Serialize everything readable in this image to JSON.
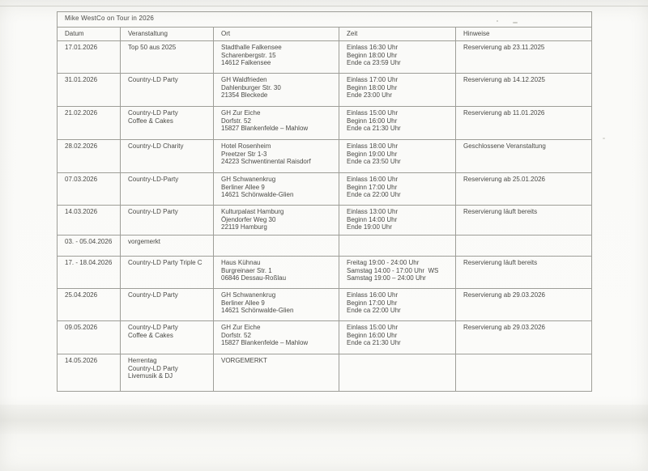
{
  "page": {
    "title": "Mike WestCo on Tour in 2026"
  },
  "colors": {
    "ink": "#4a4a46",
    "table_border": "#9e9e98",
    "paper": "#fbfbf9"
  },
  "table": {
    "columns": [
      "Datum",
      "Veranstaltung",
      "Ort",
      "Zeit",
      "Hinweise"
    ],
    "rows": [
      {
        "datum": "17.01.2026",
        "veranstaltung": [
          "Top 50 aus 2025"
        ],
        "ort": [
          "Stadthalle Falkensee",
          "Scharenbergstr. 15",
          "14612 Falkensee"
        ],
        "zeit": [
          "Einlass 16:30 Uhr",
          "Beginn 18:00 Uhr",
          "Ende ca 23:59 Uhr"
        ],
        "hinweise": [
          "Reservierung ab 23.11.2025"
        ]
      },
      {
        "datum": "31.01.2026",
        "veranstaltung": [
          "Country-LD Party"
        ],
        "ort": [
          "GH Waldfrieden",
          "Dahlenburger Str. 30",
          "21354 Bleckede"
        ],
        "zeit": [
          "Einlass 17:00 Uhr",
          "Beginn 18:00 Uhr",
          "Ende 23:00 Uhr"
        ],
        "hinweise": [
          "Reservierung ab 14.12.2025"
        ]
      },
      {
        "datum": "21.02.2026",
        "veranstaltung": [
          "Country-LD Party",
          "Coffee & Cakes"
        ],
        "ort": [
          "GH Zur Eiche",
          "Dorfstr. 52",
          "15827 Blankenfelde – Mahlow"
        ],
        "zeit": [
          "Einlass 15:00 Uhr",
          "Beginn 16:00 Uhr",
          "Ende ca 21:30 Uhr"
        ],
        "hinweise": [
          "Reservierung ab 11.01.2026"
        ]
      },
      {
        "datum": "28.02.2026",
        "veranstaltung": [
          "Country-LD Charity"
        ],
        "ort": [
          "Hotel Rosenheim",
          "Preetzer Str 1-3",
          "24223 Schwentinental Raisdorf"
        ],
        "zeit": [
          "Einlass 18:00 Uhr",
          "Beginn 19:00 Uhr",
          "Ende ca 23:50 Uhr"
        ],
        "hinweise": [
          "Geschlossene Veranstaltung"
        ]
      },
      {
        "datum": "07.03.2026",
        "veranstaltung": [
          "Country-LD-Party"
        ],
        "ort": [
          "GH Schwanenkrug",
          "Berliner Allee 9",
          "14621 Schönwalde-Glien"
        ],
        "zeit": [
          "Einlass 16:00 Uhr",
          "Beginn 17:00 Uhr",
          "Ende ca 22:00 Uhr"
        ],
        "hinweise": [
          "Reservierung ab 25.01.2026"
        ]
      },
      {
        "datum": "14.03.2026",
        "veranstaltung": [
          "Country-LD Party"
        ],
        "ort": [
          "Kulturpalast Hamburg",
          "Öjendorfer Weg 30",
          "22119 Hamburg"
        ],
        "zeit": [
          "Einlass 13:00 Uhr",
          "Beginn 14:00 Uhr",
          "Ende 19:00 Uhr"
        ],
        "hinweise": [
          "Reservierung läuft bereits"
        ]
      },
      {
        "datum": "03. - 05.04.2026",
        "veranstaltung": [
          "vorgemerkt"
        ],
        "ort": [],
        "zeit": [],
        "hinweise": []
      },
      {
        "datum": "17. - 18.04.2026",
        "veranstaltung": [
          "Country-LD Party Triple C"
        ],
        "ort": [
          "Haus Kühnau",
          "Burgreinaer Str. 1",
          "06846 Dessau-Roßlau"
        ],
        "zeit": [
          "Freitag 19:00 - 24:00 Uhr",
          "Samstag 14:00 - 17:00 Uhr  WS",
          "Samstag 19:00 – 24:00 Uhr"
        ],
        "hinweise": [
          "Reservierung läuft bereits"
        ]
      },
      {
        "datum": "25.04.2026",
        "veranstaltung": [
          "Country-LD Party"
        ],
        "ort": [
          "GH Schwanenkrug",
          "Berliner Allee 9",
          "14621 Schönwalde-Glien"
        ],
        "zeit": [
          "Einlass 16:00 Uhr",
          "Beginn 17:00 Uhr",
          "Ende ca 22:00 Uhr"
        ],
        "hinweise": [
          "Reservierung ab 29.03.2026"
        ]
      },
      {
        "datum": "09.05.2026",
        "veranstaltung": [
          "Country-LD Party",
          "Coffee & Cakes"
        ],
        "ort": [
          "GH Zur Eiche",
          "Dorfstr. 52",
          "15827 Blankenfelde – Mahlow"
        ],
        "zeit": [
          "Einlass 15:00 Uhr",
          "Beginn 16:00 Uhr",
          "Ende ca 21:30 Uhr"
        ],
        "hinweise": [
          "Reservierung ab 29.03.2026"
        ]
      },
      {
        "datum": "14.05.2026",
        "veranstaltung": [
          "Herrentag",
          "Country-LD Party",
          "Livemusik & DJ"
        ],
        "ort": [
          "VORGEMERKT"
        ],
        "zeit": [],
        "hinweise": []
      }
    ]
  }
}
